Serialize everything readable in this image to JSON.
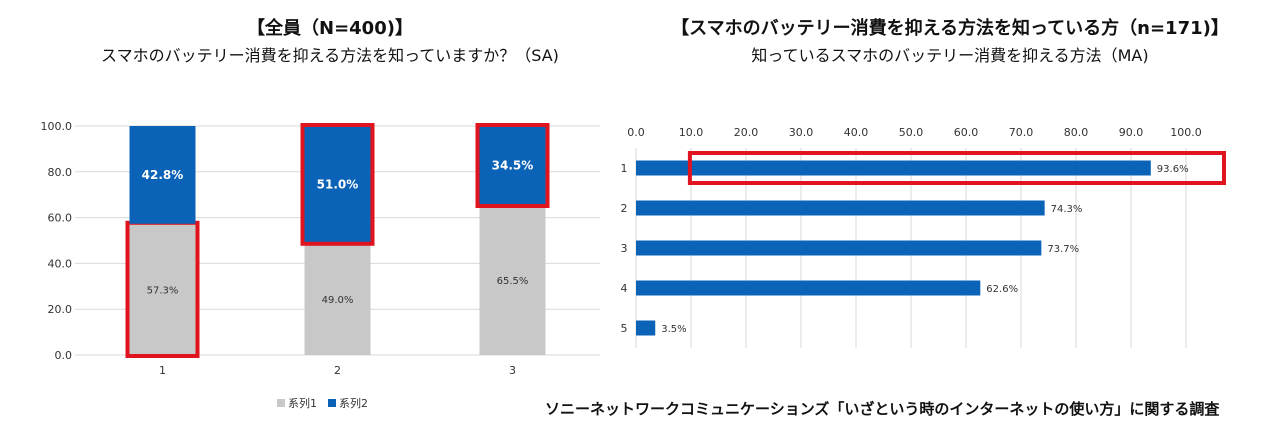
{
  "footer": "ソニーネットワークコミュニケーションズ「いざという時のインターネットの使い方」に関する調査",
  "colors": {
    "series1": "#c8c8c8",
    "series2": "#0b63b7",
    "highlight": "#e0141e",
    "grid": "#d9d9d9",
    "axis": "#333333"
  },
  "chart_data": [
    {
      "type": "bar",
      "stacked": true,
      "title": "【全員（N=400)】",
      "subtitle": "スマホのバッテリー消費を抑える方法を知っていますか？（SA)",
      "categories": [
        "1",
        "2",
        "3"
      ],
      "ylim": [
        0,
        100
      ],
      "yticks": [
        "0.0",
        "20.0",
        "40.0",
        "60.0",
        "80.0",
        "100.0"
      ],
      "series": [
        {
          "name": "系列1",
          "values": [
            57.3,
            49.0,
            65.5
          ],
          "labels": [
            "57.3%",
            "49.0%",
            "65.5%"
          ]
        },
        {
          "name": "系列2",
          "values": [
            42.8,
            51.0,
            34.5
          ],
          "labels": [
            "42.8%",
            "51.0%",
            "34.5%"
          ]
        }
      ],
      "legend": [
        "系列1",
        "系列2"
      ],
      "legend_position": "bottom",
      "highlights": [
        {
          "category": "1",
          "series": "系列1"
        },
        {
          "category": "2",
          "series": "系列2"
        },
        {
          "category": "3",
          "series": "系列2"
        }
      ]
    },
    {
      "type": "bar",
      "orientation": "horizontal",
      "title": "【スマホのバッテリー消費を抑える方法を知っている方（n=171)】",
      "subtitle": "知っているスマホのバッテリー消費を抑える方法（MA)",
      "categories": [
        "1",
        "2",
        "3",
        "4",
        "5"
      ],
      "values": [
        93.6,
        74.3,
        73.7,
        62.6,
        3.5
      ],
      "labels": [
        "93.6%",
        "74.3%",
        "73.7%",
        "62.6%",
        "3.5%"
      ],
      "xlim": [
        0,
        100
      ],
      "xticks": [
        "0.0",
        "10.0",
        "20.0",
        "30.0",
        "40.0",
        "50.0",
        "60.0",
        "70.0",
        "80.0",
        "90.0",
        "100.0"
      ],
      "highlights": [
        {
          "category": "1"
        }
      ]
    }
  ]
}
